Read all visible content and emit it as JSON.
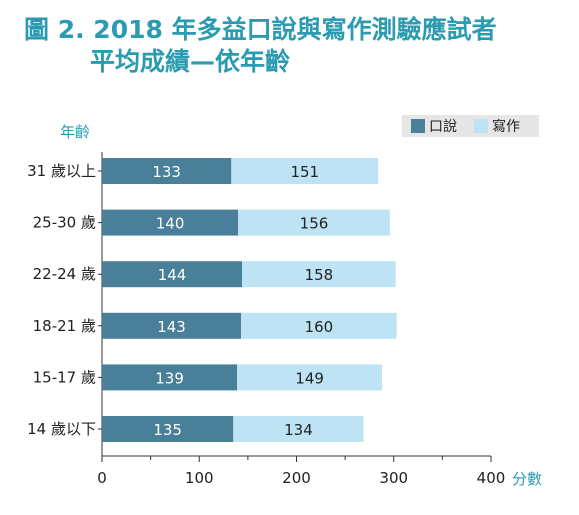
{
  "title": {
    "line1": "圖 2. 2018 年多益口說與寫作測驗應試者",
    "line2": "平均成績—依年齡"
  },
  "colors": {
    "title": "#2a9bb0",
    "speaking": "#4a7f99",
    "writing": "#bde3f5",
    "legend_bg": "#e6e6e6"
  },
  "chart_data": {
    "type": "bar",
    "orientation": "horizontal",
    "stacked": true,
    "ylabel": "年齡",
    "xlabel_unit": "分數",
    "categories": [
      "31 歲以上",
      "25-30 歲",
      "22-24 歲",
      "18-21 歲",
      "15-17 歲",
      "14 歲以下"
    ],
    "series": [
      {
        "name": "口說",
        "values": [
          133,
          140,
          144,
          143,
          139,
          135
        ]
      },
      {
        "name": "寫作",
        "values": [
          151,
          156,
          158,
          160,
          149,
          134
        ]
      }
    ],
    "xlim": [
      0,
      400
    ],
    "xticks": [
      0,
      100,
      200,
      300,
      400
    ],
    "legend_position": "top-right",
    "grid": false
  }
}
